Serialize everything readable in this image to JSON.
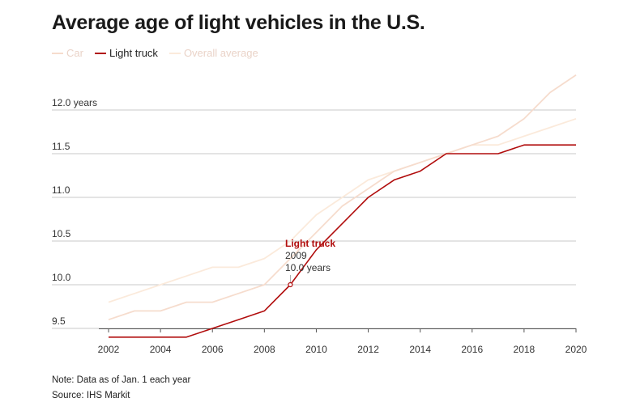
{
  "title": "Average age of light vehicles in the U.S.",
  "notes": {
    "note": "Note: Data as of Jan. 1 each year",
    "source": "Source: IHS Markit"
  },
  "colors": {
    "car": "#f6dccd",
    "light_truck": "#b10d0d",
    "overall": "#fbeadb",
    "grid": "#c8c8c8",
    "axis": "#555555"
  },
  "chart_data": {
    "type": "line",
    "title": "Average age of light vehicles in the U.S.",
    "xlabel": "",
    "ylabel": "",
    "x": [
      2002,
      2003,
      2004,
      2005,
      2006,
      2007,
      2008,
      2009,
      2010,
      2011,
      2012,
      2013,
      2014,
      2015,
      2016,
      2017,
      2018,
      2019,
      2020
    ],
    "xlim": [
      2002,
      2020
    ],
    "ylim": [
      9.45,
      12.5
    ],
    "x_ticks": [
      "2002",
      "2004",
      "2006",
      "2008",
      "2010",
      "2012",
      "2014",
      "2016",
      "2018",
      "2020"
    ],
    "x_tick_values": [
      2002,
      2004,
      2006,
      2008,
      2010,
      2012,
      2014,
      2016,
      2018,
      2020
    ],
    "y_ticks": [
      "9.5",
      "10.0",
      "10.5",
      "11.0",
      "11.5",
      "12.0 years"
    ],
    "y_tick_values": [
      9.5,
      10.0,
      10.5,
      11.0,
      11.5,
      12.0
    ],
    "grid": true,
    "legend": "top-left",
    "series": [
      {
        "name": "Car",
        "key": "car",
        "values": [
          9.6,
          9.7,
          9.7,
          9.8,
          9.8,
          9.9,
          10.0,
          10.3,
          10.6,
          10.9,
          11.1,
          11.3,
          11.4,
          11.5,
          11.6,
          11.7,
          11.9,
          12.2,
          12.4
        ]
      },
      {
        "name": "Light truck",
        "key": "light_truck",
        "values": [
          9.4,
          9.4,
          9.4,
          9.4,
          9.5,
          9.6,
          9.7,
          10.0,
          10.4,
          10.7,
          11.0,
          11.2,
          11.3,
          11.5,
          11.5,
          11.5,
          11.6,
          11.6,
          11.6
        ]
      },
      {
        "name": "Overall average",
        "key": "overall",
        "values": [
          9.8,
          9.9,
          10.0,
          10.1,
          10.2,
          10.2,
          10.3,
          10.5,
          10.8,
          11.0,
          11.2,
          11.3,
          11.4,
          11.5,
          11.6,
          11.6,
          11.7,
          11.8,
          11.9
        ]
      }
    ],
    "annotation": {
      "series": "Light truck",
      "x": 2009,
      "y": 10.0,
      "label_title": "Light truck",
      "label_year": "2009",
      "label_value": "10.0 years"
    }
  }
}
